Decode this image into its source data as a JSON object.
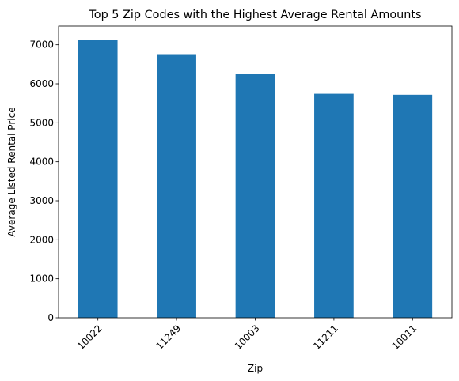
{
  "chart_data": {
    "type": "bar",
    "title": "Top 5 Zip Codes with the Highest Average Rental Amounts",
    "xlabel": "Zip",
    "ylabel": "Average Listed Rental Price",
    "categories": [
      "10022",
      "11249",
      "10003",
      "11211",
      "10011"
    ],
    "values": [
      7125,
      6760,
      6255,
      5745,
      5720
    ],
    "ylim": [
      0,
      7480
    ],
    "yticks": [
      0,
      1000,
      2000,
      3000,
      4000,
      5000,
      6000,
      7000
    ],
    "ytick_labels": [
      "0",
      "1000",
      "2000",
      "3000",
      "4000",
      "5000",
      "6000",
      "7000"
    ],
    "bar_color": "#1f77b4",
    "grid": false,
    "legend": "none"
  }
}
